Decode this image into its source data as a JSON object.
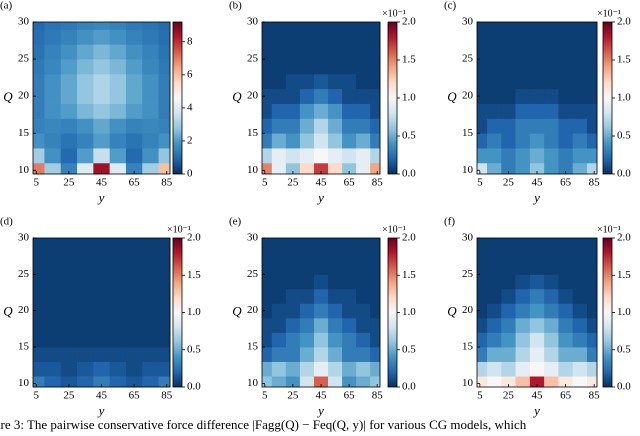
{
  "colormap": [
    "#053061",
    "#2166ac",
    "#4393c3",
    "#92c5de",
    "#d1e5f0",
    "#f7f7f7",
    "#fddbc7",
    "#f4a582",
    "#d6604d",
    "#b2182b",
    "#67001f"
  ],
  "caption": "ure 3: The pairwise conservative force difference |Fagg(Q) − Feq(Q, y)| for various CG models, which",
  "chart_data": [
    {
      "type": "heatmap",
      "panel_label": "(a)",
      "xlabel": "y",
      "ylabel": "Q",
      "x": [
        5,
        15,
        25,
        35,
        45,
        55,
        65,
        75,
        85
      ],
      "y": [
        10,
        12,
        14,
        16,
        18,
        20,
        22,
        24,
        26,
        28,
        30
      ],
      "xlim": [
        3,
        87
      ],
      "ylim": [
        9.5,
        30
      ],
      "xticks": [
        5,
        25,
        45,
        65,
        85
      ],
      "yticks": [
        10,
        15,
        20,
        25,
        30
      ],
      "clim": [
        0,
        9.2
      ],
      "cticks": [
        0,
        2,
        4,
        6,
        8
      ],
      "values": [
        [
          7,
          3,
          1.5,
          4,
          8.5,
          4,
          1.5,
          3,
          6
        ],
        [
          3,
          1.8,
          1,
          2,
          3.5,
          2,
          1,
          1.8,
          2.8
        ],
        [
          1.8,
          1.5,
          1.2,
          1.5,
          2,
          1.5,
          1.2,
          1.5,
          1.8
        ],
        [
          1.5,
          1.6,
          1.5,
          1.8,
          2.2,
          1.8,
          1.5,
          1.6,
          1.5
        ],
        [
          1.4,
          1.8,
          2,
          2.5,
          2.8,
          2.5,
          2,
          1.8,
          1.4
        ],
        [
          1.4,
          1.8,
          2.2,
          2.8,
          3.2,
          2.8,
          2.2,
          1.8,
          1.4
        ],
        [
          1.4,
          1.8,
          2.2,
          2.8,
          3.2,
          2.8,
          2.2,
          1.8,
          1.4
        ],
        [
          1.3,
          1.6,
          2,
          2.5,
          2.8,
          2.5,
          2,
          1.6,
          1.3
        ],
        [
          1.2,
          1.5,
          1.8,
          2.2,
          2.5,
          2.2,
          1.8,
          1.5,
          1.2
        ],
        [
          1.1,
          1.3,
          1.5,
          1.8,
          2,
          1.8,
          1.5,
          1.3,
          1.1
        ],
        [
          1,
          1.2,
          1.3,
          1.5,
          1.6,
          1.5,
          1.3,
          1.2,
          1
        ]
      ]
    },
    {
      "type": "heatmap",
      "panel_label": "(b)",
      "xlabel": "y",
      "ylabel": "Q",
      "colorbar_multiplier": "×10⁻¹",
      "x": [
        5,
        15,
        25,
        35,
        45,
        55,
        65,
        75,
        85
      ],
      "y": [
        10,
        12,
        14,
        16,
        18,
        20,
        22,
        24,
        26,
        28,
        30
      ],
      "xlim": [
        3,
        87
      ],
      "ylim": [
        9.5,
        30
      ],
      "xticks": [
        5,
        25,
        45,
        65,
        85
      ],
      "yticks": [
        10,
        15,
        20,
        25,
        30
      ],
      "clim": [
        0,
        2
      ],
      "cticks": [
        {
          "value": 0,
          "label": "0.0"
        },
        0.5,
        {
          "value": 1,
          "label": "1.0"
        },
        1.5,
        {
          "value": 2,
          "label": "2.0"
        }
      ],
      "values": [
        [
          1.5,
          0.9,
          0.6,
          1.2,
          1.7,
          1.2,
          0.6,
          0.9,
          1.4
        ],
        [
          0.7,
          0.9,
          0.8,
          0.9,
          1.0,
          0.9,
          0.8,
          0.9,
          0.7
        ],
        [
          0.3,
          0.5,
          0.4,
          0.6,
          0.8,
          0.6,
          0.4,
          0.5,
          0.3
        ],
        [
          0.2,
          0.3,
          0.3,
          0.5,
          0.7,
          0.5,
          0.3,
          0.3,
          0.2
        ],
        [
          0.1,
          0.2,
          0.2,
          0.4,
          0.5,
          0.4,
          0.2,
          0.2,
          0.1
        ],
        [
          0.1,
          0.1,
          0.1,
          0.2,
          0.3,
          0.2,
          0.1,
          0.1,
          0.1
        ],
        [
          0.05,
          0.05,
          0.1,
          0.1,
          0.15,
          0.1,
          0.1,
          0.05,
          0.05
        ],
        [
          0.05,
          0.05,
          0.05,
          0.05,
          0.05,
          0.05,
          0.05,
          0.05,
          0.05
        ],
        [
          0.05,
          0.05,
          0.05,
          0.05,
          0.05,
          0.05,
          0.05,
          0.05,
          0.05
        ],
        [
          0.05,
          0.05,
          0.05,
          0.05,
          0.05,
          0.05,
          0.05,
          0.05,
          0.05
        ],
        [
          0.05,
          0.05,
          0.05,
          0.05,
          0.05,
          0.05,
          0.05,
          0.05,
          0.05
        ]
      ]
    },
    {
      "type": "heatmap",
      "panel_label": "(c)",
      "xlabel": "y",
      "ylabel": "Q",
      "colorbar_multiplier": "×10⁻¹",
      "x": [
        5,
        15,
        25,
        35,
        45,
        55,
        65,
        75,
        85
      ],
      "y": [
        10,
        12,
        14,
        16,
        18,
        20,
        22,
        24,
        26,
        28,
        30
      ],
      "xlim": [
        3,
        87
      ],
      "ylim": [
        9.5,
        30
      ],
      "xticks": [
        5,
        25,
        45,
        65,
        85
      ],
      "yticks": [
        10,
        15,
        20,
        25,
        30
      ],
      "clim": [
        0,
        2
      ],
      "cticks": [
        {
          "value": 0,
          "label": "0.0"
        },
        0.5,
        {
          "value": 1,
          "label": "1.0"
        },
        1.5,
        {
          "value": 2,
          "label": "2.0"
        }
      ],
      "values": [
        [
          0.8,
          0.5,
          0.3,
          0.4,
          0.6,
          0.4,
          0.3,
          0.5,
          0.7
        ],
        [
          0.4,
          0.4,
          0.3,
          0.4,
          0.5,
          0.4,
          0.3,
          0.4,
          0.4
        ],
        [
          0.2,
          0.3,
          0.2,
          0.3,
          0.4,
          0.3,
          0.2,
          0.3,
          0.2
        ],
        [
          0.1,
          0.2,
          0.2,
          0.3,
          0.3,
          0.3,
          0.2,
          0.2,
          0.1
        ],
        [
          0.1,
          0.1,
          0.1,
          0.2,
          0.2,
          0.2,
          0.1,
          0.1,
          0.1
        ],
        [
          0.05,
          0.05,
          0.05,
          0.1,
          0.1,
          0.1,
          0.05,
          0.05,
          0.05
        ],
        [
          0.05,
          0.05,
          0.05,
          0.05,
          0.05,
          0.05,
          0.05,
          0.05,
          0.05
        ],
        [
          0.05,
          0.05,
          0.05,
          0.05,
          0.05,
          0.05,
          0.05,
          0.05,
          0.05
        ],
        [
          0.05,
          0.05,
          0.05,
          0.05,
          0.05,
          0.05,
          0.05,
          0.05,
          0.05
        ],
        [
          0.05,
          0.05,
          0.05,
          0.05,
          0.05,
          0.05,
          0.05,
          0.05,
          0.05
        ],
        [
          0.05,
          0.05,
          0.05,
          0.05,
          0.05,
          0.05,
          0.05,
          0.05,
          0.05
        ]
      ]
    },
    {
      "type": "heatmap",
      "panel_label": "(d)",
      "xlabel": "y",
      "ylabel": "Q",
      "colorbar_multiplier": "×10⁻¹",
      "x": [
        5,
        15,
        25,
        35,
        45,
        55,
        65,
        75,
        85
      ],
      "y": [
        10,
        12,
        14,
        16,
        18,
        20,
        22,
        24,
        26,
        28,
        30
      ],
      "xlim": [
        3,
        87
      ],
      "ylim": [
        9.5,
        30
      ],
      "xticks": [
        5,
        25,
        45,
        65,
        85
      ],
      "yticks": [
        10,
        15,
        20,
        25,
        30
      ],
      "clim": [
        0,
        2
      ],
      "cticks": [
        {
          "value": 0,
          "label": "0.0"
        },
        0.5,
        {
          "value": 1,
          "label": "1.0"
        },
        1.5,
        {
          "value": 2,
          "label": "2.0"
        }
      ],
      "values": [
        [
          0.3,
          0.2,
          0.15,
          0.2,
          0.3,
          0.2,
          0.15,
          0.2,
          0.3
        ],
        [
          0.15,
          0.15,
          0.1,
          0.15,
          0.2,
          0.15,
          0.1,
          0.15,
          0.15
        ],
        [
          0.1,
          0.1,
          0.1,
          0.1,
          0.1,
          0.1,
          0.1,
          0.1,
          0.1
        ],
        [
          0.05,
          0.05,
          0.05,
          0.05,
          0.05,
          0.05,
          0.05,
          0.05,
          0.05
        ],
        [
          0.05,
          0.05,
          0.05,
          0.05,
          0.05,
          0.05,
          0.05,
          0.05,
          0.05
        ],
        [
          0.05,
          0.05,
          0.05,
          0.05,
          0.05,
          0.05,
          0.05,
          0.05,
          0.05
        ],
        [
          0.05,
          0.05,
          0.05,
          0.05,
          0.05,
          0.05,
          0.05,
          0.05,
          0.05
        ],
        [
          0.05,
          0.05,
          0.05,
          0.05,
          0.05,
          0.05,
          0.05,
          0.05,
          0.05
        ],
        [
          0.05,
          0.05,
          0.05,
          0.05,
          0.05,
          0.05,
          0.05,
          0.05,
          0.05
        ],
        [
          0.05,
          0.05,
          0.05,
          0.05,
          0.05,
          0.05,
          0.05,
          0.05,
          0.05
        ],
        [
          0.05,
          0.05,
          0.05,
          0.05,
          0.05,
          0.05,
          0.05,
          0.05,
          0.05
        ]
      ]
    },
    {
      "type": "heatmap",
      "panel_label": "(e)",
      "xlabel": "y",
      "ylabel": "Q",
      "colorbar_multiplier": "×10⁻¹",
      "x": [
        5,
        15,
        25,
        35,
        45,
        55,
        65,
        75,
        85
      ],
      "y": [
        10,
        12,
        14,
        16,
        18,
        20,
        22,
        24,
        26,
        28,
        30
      ],
      "xlim": [
        3,
        87
      ],
      "ylim": [
        9.5,
        30
      ],
      "xticks": [
        5,
        25,
        45,
        65,
        85
      ],
      "yticks": [
        10,
        15,
        20,
        25,
        30
      ],
      "clim": [
        0,
        2
      ],
      "cticks": [
        {
          "value": 0,
          "label": "0.0"
        },
        0.5,
        {
          "value": 1,
          "label": "1.0"
        },
        1.5,
        {
          "value": 2,
          "label": "2.0"
        }
      ],
      "values": [
        [
          0.6,
          0.5,
          0.4,
          0.8,
          1.6,
          0.8,
          0.4,
          0.5,
          0.6
        ],
        [
          0.5,
          0.6,
          0.5,
          0.7,
          0.9,
          0.7,
          0.5,
          0.6,
          0.5
        ],
        [
          0.2,
          0.3,
          0.3,
          0.5,
          0.7,
          0.5,
          0.3,
          0.3,
          0.2
        ],
        [
          0.1,
          0.2,
          0.3,
          0.4,
          0.6,
          0.4,
          0.3,
          0.2,
          0.1
        ],
        [
          0.1,
          0.1,
          0.2,
          0.3,
          0.5,
          0.3,
          0.2,
          0.1,
          0.1
        ],
        [
          0.05,
          0.1,
          0.1,
          0.2,
          0.3,
          0.2,
          0.1,
          0.1,
          0.05
        ],
        [
          0.05,
          0.05,
          0.1,
          0.1,
          0.2,
          0.1,
          0.1,
          0.05,
          0.05
        ],
        [
          0.05,
          0.05,
          0.05,
          0.05,
          0.1,
          0.05,
          0.05,
          0.05,
          0.05
        ],
        [
          0.05,
          0.05,
          0.05,
          0.05,
          0.05,
          0.05,
          0.05,
          0.05,
          0.05
        ],
        [
          0.05,
          0.05,
          0.05,
          0.05,
          0.05,
          0.05,
          0.05,
          0.05,
          0.05
        ],
        [
          0.05,
          0.05,
          0.05,
          0.05,
          0.05,
          0.05,
          0.05,
          0.05,
          0.05
        ]
      ]
    },
    {
      "type": "heatmap",
      "panel_label": "(f)",
      "xlabel": "y",
      "ylabel": "Q",
      "colorbar_multiplier": "×10⁻¹",
      "x": [
        5,
        15,
        25,
        35,
        45,
        55,
        65,
        75,
        85
      ],
      "y": [
        10,
        12,
        14,
        16,
        18,
        20,
        22,
        24,
        26,
        28,
        30
      ],
      "xlim": [
        3,
        87
      ],
      "ylim": [
        9.5,
        30
      ],
      "xticks": [
        5,
        25,
        45,
        65,
        85
      ],
      "yticks": [
        10,
        15,
        20,
        25,
        30
      ],
      "clim": [
        0,
        2
      ],
      "cticks": [
        {
          "value": 0,
          "label": "0.0"
        },
        0.5,
        {
          "value": 1,
          "label": "1.0"
        },
        1.5,
        {
          "value": 2,
          "label": "2.0"
        }
      ],
      "values": [
        [
          1.1,
          1.0,
          1.1,
          1.3,
          1.8,
          1.3,
          1.1,
          1.0,
          1.1
        ],
        [
          0.7,
          0.8,
          0.7,
          0.9,
          1.0,
          0.9,
          0.7,
          0.8,
          0.7
        ],
        [
          0.3,
          0.5,
          0.5,
          0.7,
          0.9,
          0.7,
          0.5,
          0.5,
          0.3
        ],
        [
          0.2,
          0.3,
          0.4,
          0.6,
          0.8,
          0.6,
          0.4,
          0.3,
          0.2
        ],
        [
          0.1,
          0.2,
          0.3,
          0.5,
          0.6,
          0.5,
          0.3,
          0.2,
          0.1
        ],
        [
          0.05,
          0.1,
          0.2,
          0.3,
          0.4,
          0.3,
          0.2,
          0.1,
          0.05
        ],
        [
          0.05,
          0.05,
          0.1,
          0.2,
          0.3,
          0.2,
          0.1,
          0.05,
          0.05
        ],
        [
          0.05,
          0.05,
          0.05,
          0.1,
          0.15,
          0.1,
          0.05,
          0.05,
          0.05
        ],
        [
          0.05,
          0.05,
          0.05,
          0.05,
          0.05,
          0.05,
          0.05,
          0.05,
          0.05
        ],
        [
          0.05,
          0.05,
          0.05,
          0.05,
          0.05,
          0.05,
          0.05,
          0.05,
          0.05
        ],
        [
          0.05,
          0.05,
          0.05,
          0.05,
          0.05,
          0.05,
          0.05,
          0.05,
          0.05
        ]
      ]
    }
  ]
}
